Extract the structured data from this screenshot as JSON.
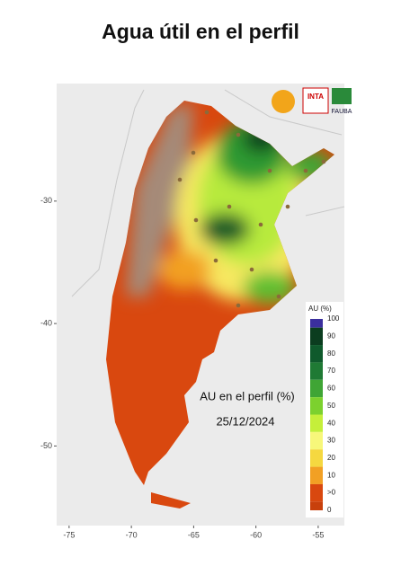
{
  "title": "Agua útil en el perfil",
  "map": {
    "xlim": [
      -76,
      -52.9
    ],
    "ylim": [
      -56.5,
      -20.4
    ],
    "xticks": [
      -75,
      -70,
      -65,
      -60,
      -55
    ],
    "yticks": [
      -30,
      -40,
      -50
    ],
    "annotation": [
      "AU en el perfil (%)",
      "25/12/2024"
    ],
    "logos": [
      "INTA",
      "FAUBA"
    ]
  },
  "legend": {
    "title": "AU (%)",
    "items": [
      {
        "label": "100",
        "color": "#3b2f9e"
      },
      {
        "label": "90",
        "color": "#0b3d1f"
      },
      {
        "label": "80",
        "color": "#0f5a2c"
      },
      {
        "label": "70",
        "color": "#1f7a34"
      },
      {
        "label": "60",
        "color": "#3fa535"
      },
      {
        "label": "50",
        "color": "#7cd12e"
      },
      {
        "label": "40",
        "color": "#c5ef3a"
      },
      {
        "label": "30",
        "color": "#f7f77a"
      },
      {
        "label": "20",
        "color": "#f5d840"
      },
      {
        "label": "10",
        "color": "#f2a024"
      },
      {
        "label": ">0",
        "color": "#d9480f"
      },
      {
        "label": "0",
        "color": "#c8400c"
      }
    ]
  }
}
